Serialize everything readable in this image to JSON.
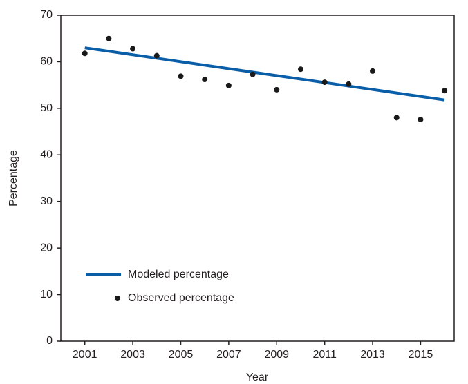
{
  "chart_data": {
    "type": "line",
    "x_label": "Year",
    "y_label": "Percentage",
    "xlim": [
      2000,
      2016.4
    ],
    "xticks": [
      2001,
      2003,
      2005,
      2007,
      2009,
      2011,
      2013,
      2015
    ],
    "ylim": [
      0,
      70
    ],
    "yticks": [
      0,
      10,
      20,
      30,
      40,
      50,
      60,
      70
    ],
    "series": [
      {
        "name": "Modeled percentage",
        "color": "#0a5ea8",
        "style": "line",
        "x": [
          2001,
          2016
        ],
        "values": [
          63,
          51.8
        ]
      },
      {
        "name": "Observed percentage",
        "color": "#1a1a1a",
        "style": "points",
        "x": [
          2001,
          2002,
          2003,
          2004,
          2005,
          2006,
          2007,
          2008,
          2009,
          2010,
          2011,
          2012,
          2013,
          2014,
          2015,
          2016
        ],
        "values": [
          61.8,
          65,
          62.8,
          61.3,
          56.9,
          56.2,
          54.9,
          57.3,
          54,
          58.4,
          55.6,
          55.2,
          58,
          48,
          47.6,
          53.8
        ]
      }
    ]
  }
}
